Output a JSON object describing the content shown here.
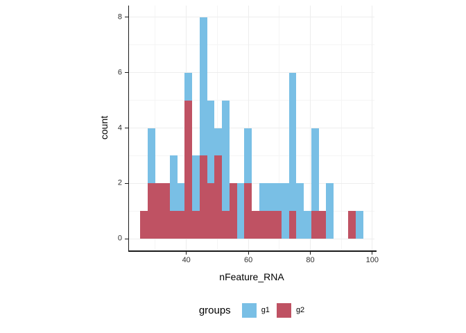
{
  "chart_data": {
    "type": "bar",
    "subtype": "stacked-histogram",
    "title": "",
    "xlabel": "nFeature_RNA",
    "ylabel": "count",
    "x_ticks": [
      40,
      60,
      80,
      100
    ],
    "x_minor_gridlines": [
      30,
      50,
      70,
      90
    ],
    "y_ticks": [
      0,
      2,
      4,
      6,
      8
    ],
    "y_minor_gridlines": [
      1,
      3,
      5,
      7
    ],
    "xlim": [
      21.5,
      100.7
    ],
    "ylim": [
      -0.42,
      8.42
    ],
    "grid": "on",
    "legend_position": "bottom",
    "legend_title": "groups",
    "bin_width": 2.4,
    "bin_starts": [
      25.1,
      27.5,
      29.9,
      32.3,
      34.7,
      37.1,
      39.5,
      41.9,
      44.3,
      46.7,
      49.1,
      51.5,
      53.9,
      56.3,
      58.7,
      61.1,
      63.5,
      65.9,
      68.3,
      70.7,
      73.1,
      75.5,
      77.9,
      80.3,
      82.7,
      85.1,
      87.5,
      89.9,
      92.3,
      94.7
    ],
    "series": [
      {
        "name": "g2",
        "stack_order": "bottom",
        "color": "#BF5263",
        "values": [
          1,
          2,
          2,
          2,
          1,
          1,
          5,
          1,
          3,
          2,
          3,
          1,
          2,
          0,
          2,
          1,
          1,
          1,
          1,
          0,
          1,
          0,
          0,
          1,
          1,
          0,
          0,
          0,
          1,
          0
        ]
      },
      {
        "name": "g1",
        "stack_order": "top",
        "color": "#79BFE5",
        "values": [
          0,
          2,
          0,
          0,
          2,
          1,
          1,
          2,
          5,
          3,
          1,
          4,
          0,
          2,
          2,
          0,
          1,
          1,
          1,
          2,
          5,
          2,
          1,
          3,
          0,
          2,
          0,
          0,
          0,
          1
        ]
      }
    ],
    "legend_entries": [
      {
        "label": "g1",
        "color": "#79BFE5"
      },
      {
        "label": "g2",
        "color": "#BF5263"
      }
    ]
  }
}
